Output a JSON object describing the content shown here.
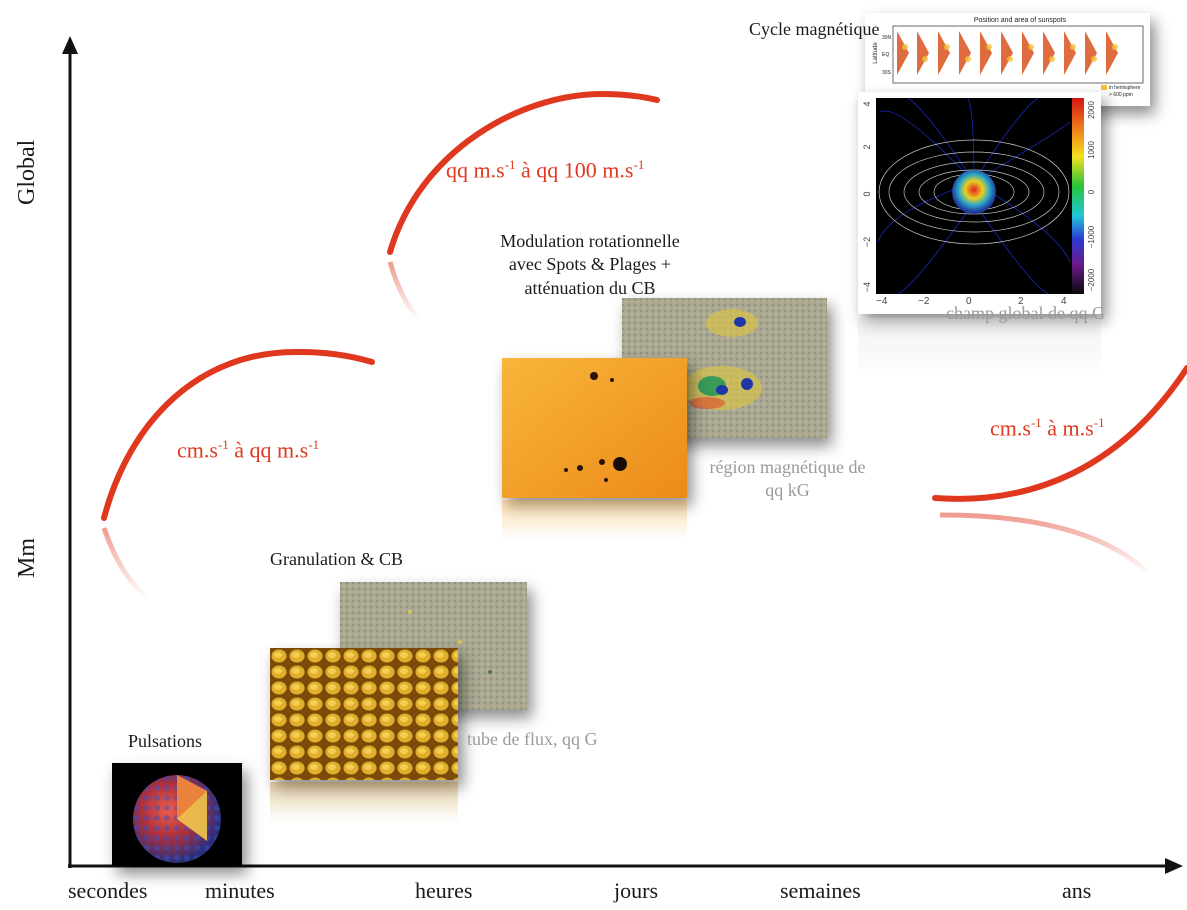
{
  "axes": {
    "x_ticks": [
      "secondes",
      "minutes",
      "heures",
      "jours",
      "semaines",
      "ans"
    ],
    "y_top": "Global",
    "y_bottom": "Mm"
  },
  "labels": {
    "pulsations": "Pulsations",
    "granulation": "Granulation & CB",
    "tube": "tube de flux, qq G",
    "modulation_l1": "Modulation rotationnelle",
    "modulation_l2": "avec Spots & Plages +",
    "modulation_l3": "atténuation du CB",
    "region_l1": "région magnétique de",
    "region_l2": "qq kG",
    "cycle": "Cycle magnétique",
    "champ": "champ global de qq G"
  },
  "amplitudes": {
    "a1_pre": "cm.s",
    "a1_exp": "-1",
    "a1_mid": " à qq m.s",
    "a1_exp2": "-1",
    "a2_pre": "qq m.s",
    "a2_exp": "-1",
    "a2_mid": " à qq 100 m.s",
    "a2_exp2": "-1",
    "a3_pre": "cm.s",
    "a3_exp": "-1",
    "a3_mid": " à m.s",
    "a3_exp2": "-1"
  },
  "sunspot_plot": {
    "title": "Position and area of sunspots",
    "ylabel": "Latitude",
    "yticks": [
      "30N",
      "EQ",
      "30S"
    ],
    "legend_l1": "in hemisphere",
    "legend_l2": "> 600 ppm"
  },
  "field_plot": {
    "xticks": [
      "−4",
      "−2",
      "0",
      "2",
      "4"
    ],
    "yticks": [
      "4",
      "2",
      "0",
      "−2",
      "−4"
    ],
    "cbar_ticks": [
      "2000",
      "1000",
      "0",
      "−1000",
      "−2000"
    ]
  },
  "colors": {
    "accent": "#e0381e",
    "axis": "#111111",
    "caption_gray": "#9a9a9a"
  }
}
